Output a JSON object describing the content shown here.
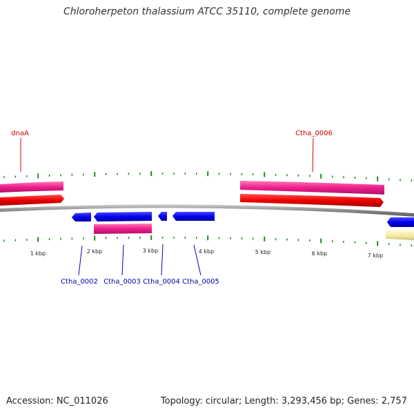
{
  "title": "Chloroherpeton thalassium ATCC 35110, complete genome",
  "footer": {
    "accession": "Accession: NC_011026",
    "summary": "Topology: circular; Length: 3,293,456 bp; Genes: 2,757"
  },
  "colors": {
    "forward_cds": "#ee0000",
    "forward_gene": "#ee1f8c",
    "reverse_cds": "#0000ee",
    "reverse_gene": "#ee1f8c",
    "other_feature": "#f3e8a4",
    "backbone": "#888888",
    "ticks": "#1a8a1a",
    "forward_label": "#cc0000",
    "reverse_label": "#0000aa"
  },
  "scale_labels": [
    "1 kbp",
    "2 kbp",
    "3 kbp",
    "4 kbp",
    "5 kbp",
    "6 kbp",
    "7 kbp"
  ],
  "gene_labels": {
    "forward": [
      "dnaA",
      "Ctha_0006"
    ],
    "reverse": [
      "Ctha_0002",
      "Ctha_0003",
      "Ctha_0004",
      "Ctha_0005"
    ]
  }
}
